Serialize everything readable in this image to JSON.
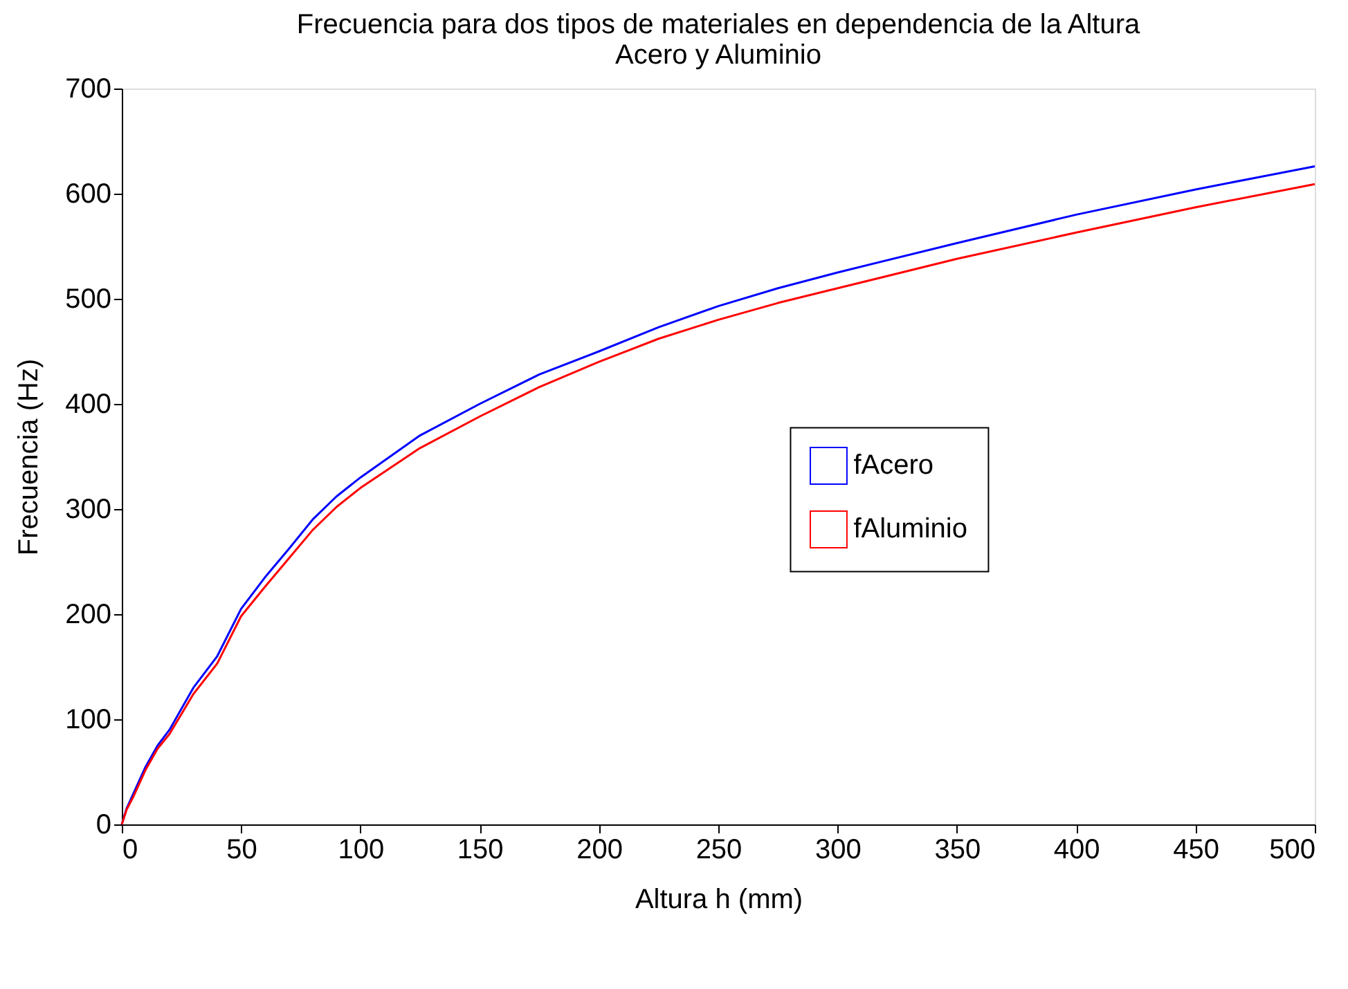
{
  "chart_data": {
    "type": "line",
    "title": "Frecuencia para dos tipos de materiales en dependencia de la Altura",
    "subtitle": "Acero y Aluminio",
    "xlabel": "Altura h (mm)",
    "ylabel": "Frecuencia (Hz)",
    "xlim": [
      0,
      500
    ],
    "xticks": [
      0,
      50,
      100,
      150,
      200,
      250,
      300,
      350,
      400,
      450,
      500
    ],
    "ylim": [
      0,
      700
    ],
    "yticks": [
      0,
      100,
      200,
      300,
      400,
      500,
      600,
      700
    ],
    "grid": false,
    "legend": "right",
    "marker": "none",
    "line_style": "solid",
    "series": [
      {
        "name": "fAcero",
        "color": "#0000ff",
        "x": [
          0,
          2,
          5,
          10,
          15,
          20,
          25,
          30,
          40,
          50,
          60,
          70,
          80,
          90,
          100,
          125,
          150,
          175,
          200,
          225,
          250,
          275,
          300,
          350,
          400,
          450,
          500
        ],
        "values": [
          0,
          15,
          30,
          55,
          75,
          90,
          110,
          130,
          160,
          205,
          235,
          262,
          290,
          312,
          330,
          370,
          400,
          428,
          450,
          473,
          493,
          510,
          525,
          553,
          580,
          604,
          626
        ]
      },
      {
        "name": "fAluminio",
        "color": "#ff0000",
        "x": [
          0,
          2,
          5,
          10,
          15,
          20,
          25,
          30,
          40,
          50,
          60,
          70,
          80,
          90,
          100,
          125,
          150,
          175,
          200,
          225,
          250,
          275,
          300,
          350,
          400,
          450,
          500
        ],
        "values": [
          0,
          14,
          27,
          52,
          72,
          86,
          105,
          124,
          153,
          198,
          226,
          253,
          280,
          302,
          320,
          358,
          388,
          416,
          440,
          462,
          480,
          496,
          510,
          538,
          563,
          587,
          609
        ]
      }
    ]
  }
}
